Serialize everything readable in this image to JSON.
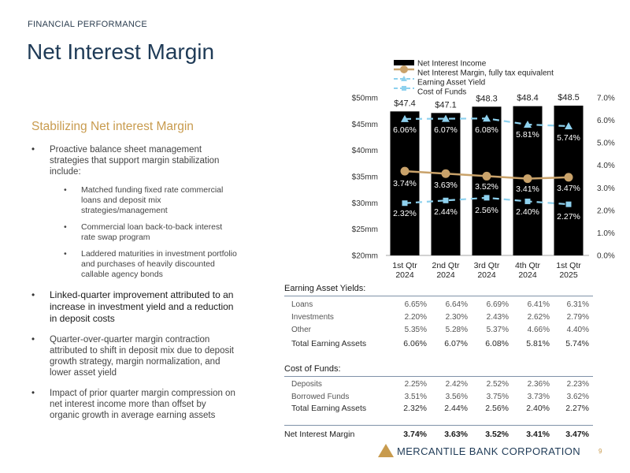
{
  "header": {
    "section": "FINANCIAL PERFORMANCE",
    "title": "Net Interest Margin"
  },
  "summary": {
    "subhead": "Stabilizing Net interest Margin",
    "bullets": [
      {
        "text": "Proactive balance sheet management strategies that support margin stabilization include:",
        "sub": [
          "Matched funding fixed rate commercial loans and deposit mix strategies/management",
          "Commercial loan back-to-back interest rate swap program",
          "Laddered maturities in investment portfolio and purchases of heavily discounted callable agency bonds"
        ]
      },
      {
        "text": "Linked-quarter improvement attributed to an increase in investment yield and a reduction in deposit costs"
      },
      {
        "text": "Quarter-over-quarter margin contraction attributed to shift in deposit mix due to deposit growth strategy, margin normalization, and lower asset yield"
      },
      {
        "text": "Impact of prior quarter margin compression on net interest income more than offset by organic growth in average earning assets"
      }
    ]
  },
  "chart_data": {
    "type": "bar",
    "categories": [
      [
        "1st Qtr",
        "2024"
      ],
      [
        "2nd Qtr",
        "2024"
      ],
      [
        "3rd Qtr",
        "2024"
      ],
      [
        "4th Qtr",
        "2024"
      ],
      [
        "1st Qtr",
        "2025"
      ]
    ],
    "legend": [
      "Net Interest Income",
      "Net Interest Margin, fully tax equivalent",
      "Earning Asset Yield",
      "Cost of Funds"
    ],
    "bars": {
      "name": "Net Interest Income",
      "values": [
        47.4,
        47.1,
        48.3,
        48.4,
        48.5
      ],
      "labels": [
        "$47.4",
        "$47.1",
        "$48.3",
        "$48.4",
        "$48.5"
      ],
      "color": "#000000"
    },
    "lines": [
      {
        "name": "Net Interest Margin, fully tax equivalent",
        "values": [
          3.74,
          3.63,
          3.52,
          3.41,
          3.47
        ],
        "labels": [
          "3.74%",
          "3.63%",
          "3.52%",
          "3.41%",
          "3.47%"
        ],
        "color": "#c9a26a",
        "style": "solid",
        "marker": "circle"
      },
      {
        "name": "Earning Asset Yield",
        "values": [
          6.06,
          6.07,
          6.08,
          5.81,
          5.74
        ],
        "labels": [
          "6.06%",
          "6.07%",
          "6.08%",
          "5.81%",
          "5.74%"
        ],
        "color": "#8ed1ee",
        "style": "dashed",
        "marker": "triangle"
      },
      {
        "name": "Cost of Funds",
        "values": [
          2.32,
          2.44,
          2.56,
          2.4,
          2.27
        ],
        "labels": [
          "2.32%",
          "2.44%",
          "2.56%",
          "2.40%",
          "2.27%"
        ],
        "color": "#8ed1ee",
        "style": "dashed",
        "marker": "square"
      }
    ],
    "y_left": {
      "min": 20,
      "max": 50,
      "ticks": [
        "$20mm",
        "$25mm",
        "$30mm",
        "$35mm",
        "$40mm",
        "$45mm",
        "$50mm"
      ]
    },
    "y_right": {
      "min": 0,
      "max": 7,
      "ticks": [
        "0.0%",
        "1.0%",
        "2.0%",
        "3.0%",
        "4.0%",
        "5.0%",
        "6.0%",
        "7.0%"
      ]
    }
  },
  "table": {
    "earning": {
      "heading": "Earning Asset Yields:",
      "rows": [
        {
          "label": "Loans",
          "values": [
            "6.65%",
            "6.64%",
            "6.69%",
            "6.41%",
            "6.31%"
          ]
        },
        {
          "label": "Investments",
          "values": [
            "2.20%",
            "2.30%",
            "2.43%",
            "2.62%",
            "2.79%"
          ]
        },
        {
          "label": "Other",
          "values": [
            "5.35%",
            "5.28%",
            "5.37%",
            "4.66%",
            "4.40%"
          ]
        }
      ],
      "total": {
        "label": "Total Earning Assets",
        "values": [
          "6.06%",
          "6.07%",
          "6.08%",
          "5.81%",
          "5.74%"
        ]
      }
    },
    "funds": {
      "heading": "Cost of Funds:",
      "rows": [
        {
          "label": "Deposits",
          "values": [
            "2.25%",
            "2.42%",
            "2.52%",
            "2.36%",
            "2.23%"
          ]
        },
        {
          "label": "Borrowed Funds",
          "values": [
            "3.51%",
            "3.56%",
            "3.75%",
            "3.73%",
            "3.62%"
          ]
        }
      ],
      "total": {
        "label": "Total Earning Assets",
        "values": [
          "2.32%",
          "2.44%",
          "2.56%",
          "2.40%",
          "2.27%"
        ]
      }
    },
    "nim": {
      "label": "Net Interest Margin",
      "values": [
        "3.74%",
        "3.63%",
        "3.52%",
        "3.41%",
        "3.47%"
      ]
    }
  },
  "footer": {
    "company": "MERCANTILE BANK CORPORATION",
    "page": "9"
  },
  "colors": {
    "navy": "#1f3b57",
    "gold": "#c89b4e",
    "tan": "#c9a26a",
    "lightblue": "#8ed1ee"
  }
}
